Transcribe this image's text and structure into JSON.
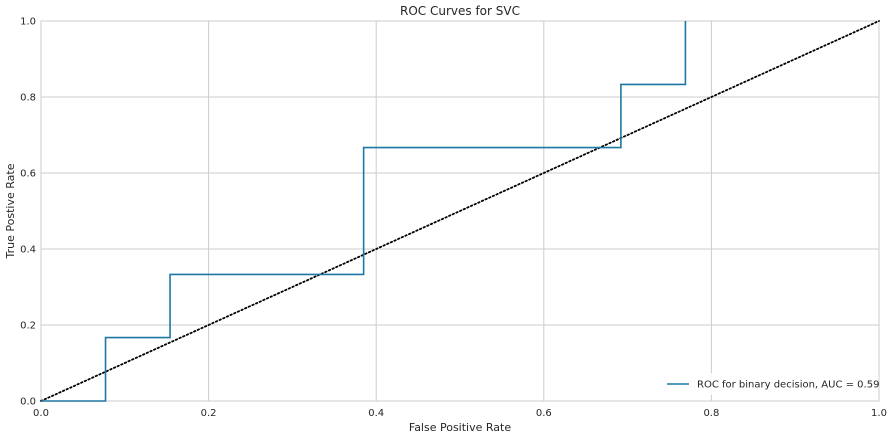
{
  "chart_data": {
    "type": "line",
    "title": "ROC Curves for SVC",
    "xlabel": "False Positive Rate",
    "ylabel": "True Postive Rate",
    "xlim": [
      0,
      1
    ],
    "ylim": [
      0,
      1
    ],
    "xticks": [
      0,
      0.2,
      0.4,
      0.6,
      0.8,
      1.0
    ],
    "xtick_labels": [
      "0.0",
      "0.2",
      "0.4",
      "0.6",
      "0.8",
      "1.0"
    ],
    "yticks": [
      0,
      0.2,
      0.4,
      0.6,
      0.8,
      1.0
    ],
    "ytick_labels": [
      "0.0",
      "0.2",
      "0.4",
      "0.6",
      "0.8",
      "1.0"
    ],
    "grid": true,
    "legend_position": "lower-right",
    "series": [
      {
        "name": "ROC for binary decision, AUC = 0.59",
        "color": "#1f77a4",
        "style": "solid",
        "x": [
          0,
          0.077,
          0.077,
          0.154,
          0.154,
          0.385,
          0.385,
          0.692,
          0.692,
          0.769,
          0.769
        ],
        "y": [
          0,
          0,
          0.167,
          0.167,
          0.333,
          0.333,
          0.667,
          0.667,
          0.833,
          0.833,
          1.0
        ]
      },
      {
        "color": "#000000",
        "style": "dotted",
        "x": [
          0,
          1
        ],
        "y": [
          0,
          1
        ]
      }
    ]
  }
}
